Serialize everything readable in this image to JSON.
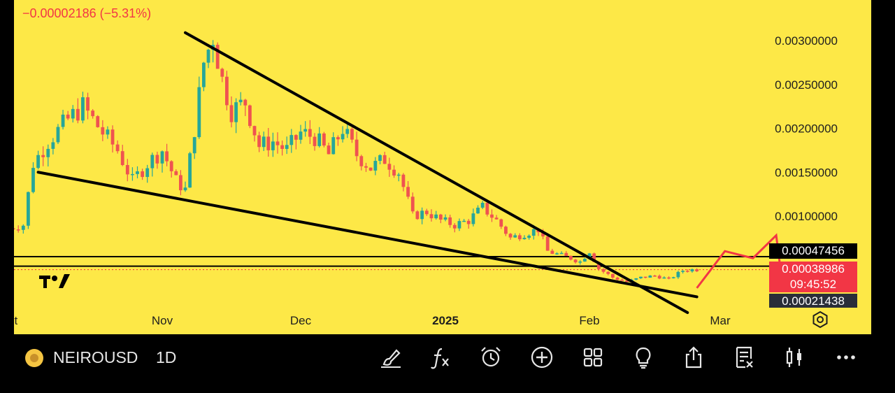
{
  "chart_data": {
    "type": "candlestick",
    "symbol": "NEIROUSD",
    "interval": "1D",
    "change_text": "−0.00002186 (−5.31%)",
    "ylim": [
      0.0,
      0.00323
    ],
    "y_ticks": [
      "0.00300000",
      "0.00250000",
      "0.00200000",
      "0.00150000",
      "0.00100000"
    ],
    "y_tick_values": [
      0.003,
      0.0025,
      0.002,
      0.0015,
      0.001
    ],
    "x_labels": [
      "Oct",
      "Nov",
      "Dec",
      "2025",
      "Feb",
      "Mar"
    ],
    "x_label_dates": [
      "2024-10-01",
      "2024-11-01",
      "2024-12-01",
      "2025-01-01",
      "2025-02-01",
      "2025-03-01"
    ],
    "x_range": [
      "2024-10-01",
      "2025-03-04"
    ],
    "last_price": "0.00038986",
    "last_price_value": 0.00038986,
    "countdown": "09:45:52",
    "resistance_label": "0.00047456",
    "resistance_value": 0.00047456,
    "support_label": "0.00021438",
    "support_value": 0.00021438,
    "upper_trendline": [
      [
        "2024-11-06",
        0.00309
      ],
      [
        "2025-02-22",
        -0.0001
      ]
    ],
    "lower_trendline": [
      [
        "2024-10-07",
        0.0015
      ],
      [
        "2025-02-24",
        8e-05
      ]
    ],
    "arrow_path": [
      [
        "2025-02-24",
        0.00018
      ],
      [
        "2025-03-02",
        0.0006
      ],
      [
        "2025-03-08",
        0.00052
      ],
      [
        "2025-03-13",
        0.00078
      ],
      [
        "2025-03-14",
        0.00036
      ]
    ],
    "ohlc_anchors": [
      [
        "2024-10-01",
        0.00085
      ],
      [
        "2024-10-05",
        0.0009
      ],
      [
        "2024-10-07",
        0.0016
      ],
      [
        "2024-10-10",
        0.00185
      ],
      [
        "2024-10-14",
        0.0021
      ],
      [
        "2024-10-17",
        0.00225
      ],
      [
        "2024-10-21",
        0.00195
      ],
      [
        "2024-10-24",
        0.00175
      ],
      [
        "2024-10-27",
        0.0014
      ],
      [
        "2024-10-30",
        0.0016
      ],
      [
        "2024-11-02",
        0.00175
      ],
      [
        "2024-11-05",
        0.0014
      ],
      [
        "2024-11-07",
        0.0013
      ],
      [
        "2024-11-09",
        0.002
      ],
      [
        "2024-11-11",
        0.00275
      ],
      [
        "2024-11-13",
        0.00305
      ],
      [
        "2024-11-15",
        0.00255
      ],
      [
        "2024-11-17",
        0.0022
      ],
      [
        "2024-11-20",
        0.0023
      ],
      [
        "2024-11-23",
        0.0018
      ],
      [
        "2024-11-26",
        0.00185
      ],
      [
        "2024-11-29",
        0.00175
      ],
      [
        "2024-12-02",
        0.00195
      ],
      [
        "2024-12-05",
        0.0019
      ],
      [
        "2024-12-08",
        0.0017
      ],
      [
        "2024-12-11",
        0.002
      ],
      [
        "2024-12-14",
        0.0017
      ],
      [
        "2024-12-17",
        0.00155
      ],
      [
        "2024-12-20",
        0.00165
      ],
      [
        "2024-12-23",
        0.0015
      ],
      [
        "2024-12-26",
        0.001
      ],
      [
        "2024-12-29",
        0.00105
      ],
      [
        "2025-01-01",
        0.00095
      ],
      [
        "2025-01-04",
        0.0009
      ],
      [
        "2025-01-07",
        0.00095
      ],
      [
        "2025-01-10",
        0.0011
      ],
      [
        "2025-01-13",
        0.00095
      ],
      [
        "2025-01-16",
        0.00075
      ],
      [
        "2025-01-19",
        0.0008
      ],
      [
        "2025-01-22",
        0.00085
      ],
      [
        "2025-01-24",
        0.0006
      ],
      [
        "2025-01-27",
        0.00055
      ],
      [
        "2025-01-29",
        0.00052
      ],
      [
        "2025-01-31",
        0.00048
      ],
      [
        "2025-02-02",
        0.0006
      ],
      [
        "2025-02-04",
        0.0004
      ],
      [
        "2025-02-07",
        0.0003
      ],
      [
        "2025-02-10",
        0.00025
      ],
      [
        "2025-02-13",
        0.0003
      ],
      [
        "2025-02-16",
        0.00032
      ],
      [
        "2025-02-19",
        0.00028
      ],
      [
        "2025-02-22",
        0.00038
      ],
      [
        "2025-02-24",
        0.00039
      ]
    ]
  },
  "toolbar": {
    "symbol": "NEIROUSD",
    "interval": "1D",
    "icons": [
      "brush-icon",
      "fx-indicator-icon",
      "alarm-icon",
      "add-icon",
      "layout-grid-icon",
      "idea-bulb-icon",
      "share-icon",
      "news-icon",
      "candle-style-icon",
      "more-icon"
    ]
  },
  "colors": {
    "background": "#fde847",
    "up": "#26a69a",
    "down": "#ef5350",
    "text": "#1e1e1e",
    "accent_red": "#f23645",
    "tag_dark": "#131722"
  }
}
